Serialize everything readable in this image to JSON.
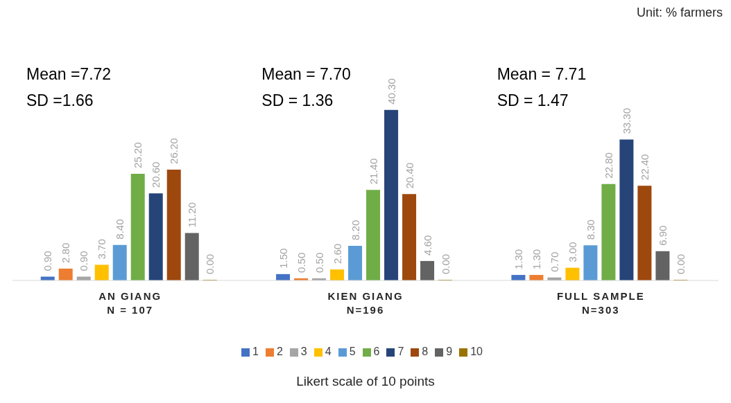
{
  "chart_data": {
    "type": "bar",
    "xlabel": "Likert scale of 10 points",
    "categories": [
      "AN GIANG\nN = 107",
      "KIEN GIANG\nN=196",
      "FULL SAMPLE\nN=303"
    ],
    "series": [
      {
        "name": "1",
        "color": "#4472c4",
        "values": [
          0.9,
          1.5,
          1.3
        ],
        "value_labels": [
          "0.90",
          "1.50",
          "1.30"
        ]
      },
      {
        "name": "2",
        "color": "#ed7d31",
        "values": [
          2.8,
          0.5,
          1.3
        ],
        "value_labels": [
          "2.80",
          "0.50",
          "1.30"
        ]
      },
      {
        "name": "3",
        "color": "#a5a5a5",
        "values": [
          0.9,
          0.5,
          0.7
        ],
        "value_labels": [
          "0.90",
          "0.50",
          "0.70"
        ]
      },
      {
        "name": "4",
        "color": "#ffc000",
        "values": [
          3.7,
          2.6,
          3.0
        ],
        "value_labels": [
          "3.70",
          "2.60",
          "3.00"
        ]
      },
      {
        "name": "5",
        "color": "#5b9bd5",
        "values": [
          8.4,
          8.2,
          8.3
        ],
        "value_labels": [
          "8.40",
          "8.20",
          "8.30"
        ]
      },
      {
        "name": "6",
        "color": "#70ad47",
        "values": [
          25.2,
          21.4,
          22.8
        ],
        "value_labels": [
          "25.20",
          "21.40",
          "22.80"
        ]
      },
      {
        "name": "7",
        "color": "#264478",
        "values": [
          20.6,
          40.3,
          33.3
        ],
        "value_labels": [
          "20.60",
          "40.30",
          "33.30"
        ]
      },
      {
        "name": "8",
        "color": "#9e480e",
        "values": [
          26.2,
          20.4,
          22.4
        ],
        "value_labels": [
          "26.20",
          "20.40",
          "22.40"
        ]
      },
      {
        "name": "9",
        "color": "#636363",
        "values": [
          11.2,
          4.6,
          6.9
        ],
        "value_labels": [
          "11.20",
          "4.60",
          "6.90"
        ]
      },
      {
        "name": "10",
        "color": "#997300",
        "values": [
          0.0,
          0.0,
          0.0
        ],
        "value_labels": [
          "0.00",
          "0.00",
          "0.00"
        ]
      }
    ],
    "annotations": [
      "Unit: % farmers",
      "Mean =7.72",
      "SD =1.66",
      "Mean = 7.70",
      "SD = 1.36",
      "Mean = 7.71",
      "SD = 1.47"
    ],
    "legend": "bottom",
    "grid": false
  }
}
